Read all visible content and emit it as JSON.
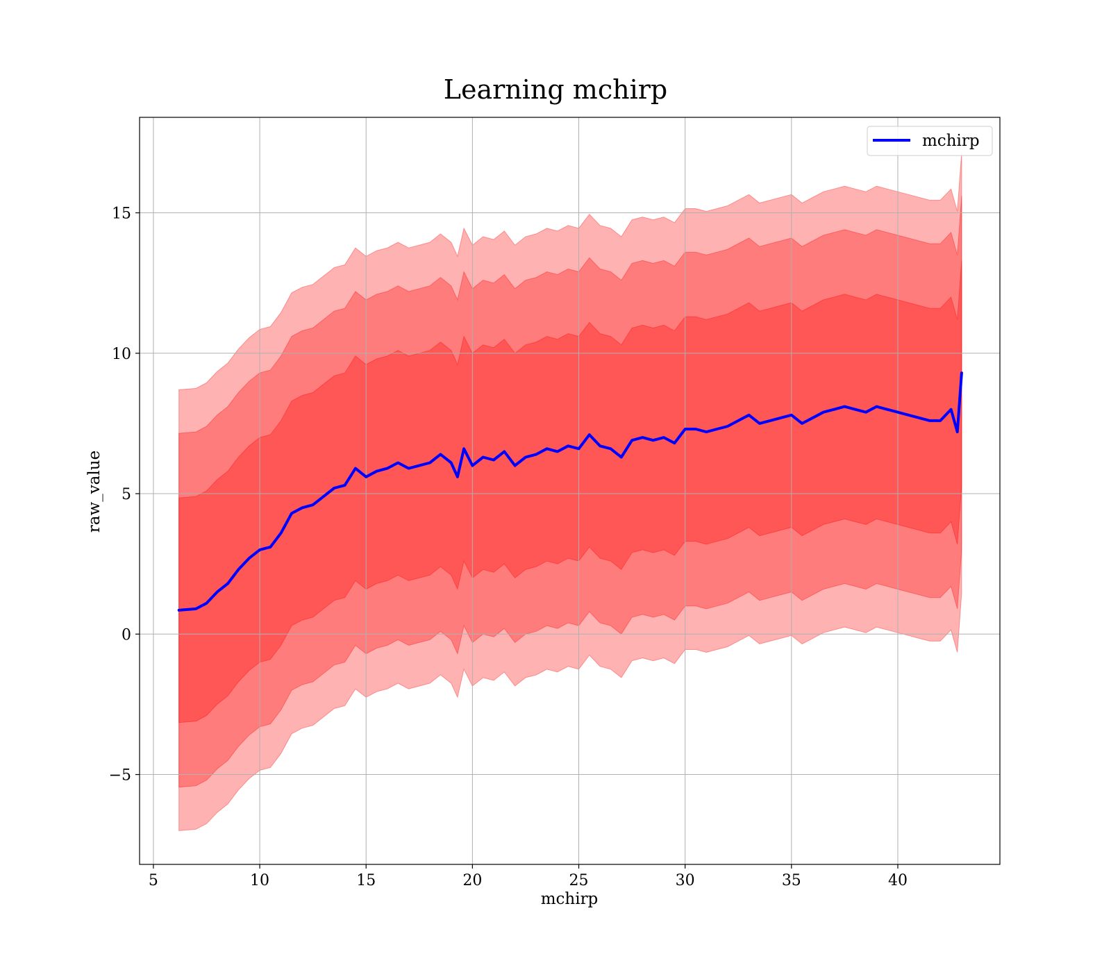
{
  "chart_data": {
    "type": "line",
    "title": "Learning mchirp",
    "xlabel": "mchirp",
    "ylabel": "raw_value",
    "xlim": [
      4.35,
      44.8
    ],
    "ylim": [
      -8.2,
      18.4
    ],
    "x_ticks": [
      5,
      10,
      15,
      20,
      25,
      30,
      35,
      40
    ],
    "x_tick_labels": [
      "5",
      "10",
      "15",
      "20",
      "25",
      "30",
      "35",
      "40"
    ],
    "y_ticks": [
      -5,
      0,
      5,
      10,
      15
    ],
    "y_tick_labels": [
      "−5",
      "0",
      "5",
      "10",
      "15"
    ],
    "grid": true,
    "legend": {
      "placement": "top-right",
      "entries": [
        "mchirp"
      ]
    },
    "colors": {
      "line": "#0000ff",
      "band": "#ff0000",
      "band_alpha": 0.3
    },
    "series": [
      {
        "name": "mchirp",
        "x": [
          6.2,
          7.0,
          7.5,
          8.0,
          8.5,
          9.0,
          9.5,
          10.0,
          10.5,
          11.0,
          11.5,
          12.0,
          12.5,
          13.0,
          13.5,
          14.0,
          14.5,
          15.0,
          15.5,
          16.0,
          16.5,
          17.0,
          17.5,
          18.0,
          18.5,
          19.0,
          19.3,
          19.6,
          20.0,
          20.5,
          21.0,
          21.5,
          22.0,
          22.5,
          23.0,
          23.5,
          24.0,
          24.5,
          25.0,
          25.5,
          26.0,
          26.5,
          27.0,
          27.5,
          28.0,
          28.5,
          29.0,
          29.5,
          30.0,
          30.5,
          31.0,
          31.5,
          32.0,
          32.5,
          33.0,
          33.5,
          34.0,
          34.5,
          35.0,
          35.5,
          36.0,
          36.5,
          37.0,
          37.5,
          38.0,
          38.5,
          39.0,
          39.5,
          40.0,
          40.5,
          41.0,
          41.5,
          42.0,
          42.5,
          42.8,
          43.0
        ],
        "y": [
          0.85,
          0.9,
          1.1,
          1.5,
          1.8,
          2.3,
          2.7,
          3.0,
          3.1,
          3.6,
          4.3,
          4.5,
          4.6,
          4.9,
          5.2,
          5.3,
          5.9,
          5.6,
          5.8,
          5.9,
          6.1,
          5.9,
          6.0,
          6.1,
          6.4,
          6.1,
          5.6,
          6.6,
          6.0,
          6.3,
          6.2,
          6.5,
          6.0,
          6.3,
          6.4,
          6.6,
          6.5,
          6.7,
          6.6,
          7.1,
          6.7,
          6.6,
          6.3,
          6.9,
          7.0,
          6.9,
          7.0,
          6.8,
          7.3,
          7.3,
          7.2,
          7.3,
          7.4,
          7.6,
          7.8,
          7.5,
          7.6,
          7.7,
          7.8,
          7.5,
          7.7,
          7.9,
          8.0,
          8.1,
          8.0,
          7.9,
          8.1,
          8.0,
          7.9,
          7.8,
          7.7,
          7.6,
          7.6,
          8.0,
          7.2,
          9.3
        ]
      }
    ],
    "bands": [
      {
        "sigma": 1,
        "half_width": [
          4.0,
          4.0,
          4.0,
          4.0,
          4.0,
          4.0,
          4.0,
          4.0,
          4.0,
          4.0,
          4.0,
          4.0,
          4.0,
          4.0,
          4.0,
          4.0,
          4.0,
          4.0,
          4.0,
          4.0,
          4.0,
          4.0,
          4.0,
          4.0,
          4.0,
          4.0,
          4.0,
          4.0,
          4.0,
          4.0,
          4.0,
          4.0,
          4.0,
          4.0,
          4.0,
          4.0,
          4.0,
          4.0,
          4.0,
          4.0,
          4.0,
          4.0,
          4.0,
          4.0,
          4.0,
          4.0,
          4.0,
          4.0,
          4.0,
          4.0,
          4.0,
          4.0,
          4.0,
          4.0,
          4.0,
          4.0,
          4.0,
          4.0,
          4.0,
          4.0,
          4.0,
          4.0,
          4.0,
          4.0,
          4.0,
          4.0,
          4.0,
          4.0,
          4.0,
          4.0,
          4.0,
          4.0,
          4.0,
          4.0,
          4.0,
          4.0
        ]
      },
      {
        "sigma": 2,
        "half_width": [
          6.3,
          6.3,
          6.3,
          6.3,
          6.3,
          6.3,
          6.3,
          6.3,
          6.3,
          6.3,
          6.3,
          6.3,
          6.3,
          6.3,
          6.3,
          6.3,
          6.3,
          6.3,
          6.3,
          6.3,
          6.3,
          6.3,
          6.3,
          6.3,
          6.3,
          6.3,
          6.3,
          6.3,
          6.3,
          6.3,
          6.3,
          6.3,
          6.3,
          6.3,
          6.3,
          6.3,
          6.3,
          6.3,
          6.3,
          6.3,
          6.3,
          6.3,
          6.3,
          6.3,
          6.3,
          6.3,
          6.3,
          6.3,
          6.3,
          6.3,
          6.3,
          6.3,
          6.3,
          6.3,
          6.3,
          6.3,
          6.3,
          6.3,
          6.3,
          6.3,
          6.3,
          6.3,
          6.3,
          6.3,
          6.3,
          6.3,
          6.3,
          6.3,
          6.3,
          6.3,
          6.3,
          6.3,
          6.3,
          6.3,
          6.3,
          6.3
        ]
      },
      {
        "sigma": 3,
        "half_width": [
          7.85,
          7.85,
          7.85,
          7.85,
          7.85,
          7.85,
          7.85,
          7.85,
          7.85,
          7.85,
          7.85,
          7.85,
          7.85,
          7.85,
          7.85,
          7.85,
          7.85,
          7.85,
          7.85,
          7.85,
          7.85,
          7.85,
          7.85,
          7.85,
          7.85,
          7.85,
          7.85,
          7.85,
          7.85,
          7.85,
          7.85,
          7.85,
          7.85,
          7.85,
          7.85,
          7.85,
          7.85,
          7.85,
          7.85,
          7.85,
          7.85,
          7.85,
          7.85,
          7.85,
          7.85,
          7.85,
          7.85,
          7.85,
          7.85,
          7.85,
          7.85,
          7.85,
          7.85,
          7.85,
          7.85,
          7.85,
          7.85,
          7.85,
          7.85,
          7.85,
          7.85,
          7.85,
          7.85,
          7.85,
          7.85,
          7.85,
          7.85,
          7.85,
          7.85,
          7.85,
          7.85,
          7.85,
          7.85,
          7.85,
          7.85,
          7.85
        ]
      }
    ]
  }
}
